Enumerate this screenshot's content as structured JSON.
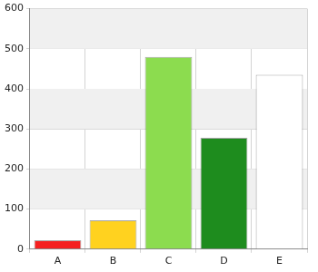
{
  "chart_data": {
    "type": "bar",
    "categories": [
      "A",
      "B",
      "C",
      "D",
      "E"
    ],
    "values": [
      22,
      72,
      480,
      278,
      435
    ],
    "colors": [
      "#f52020",
      "#ffd21f",
      "#8cdc4f",
      "#1e8c1e",
      "#ffffff"
    ],
    "ylim": [
      0,
      600
    ],
    "yticks": [
      0,
      100,
      200,
      300,
      400,
      500,
      600
    ],
    "grid": true
  }
}
